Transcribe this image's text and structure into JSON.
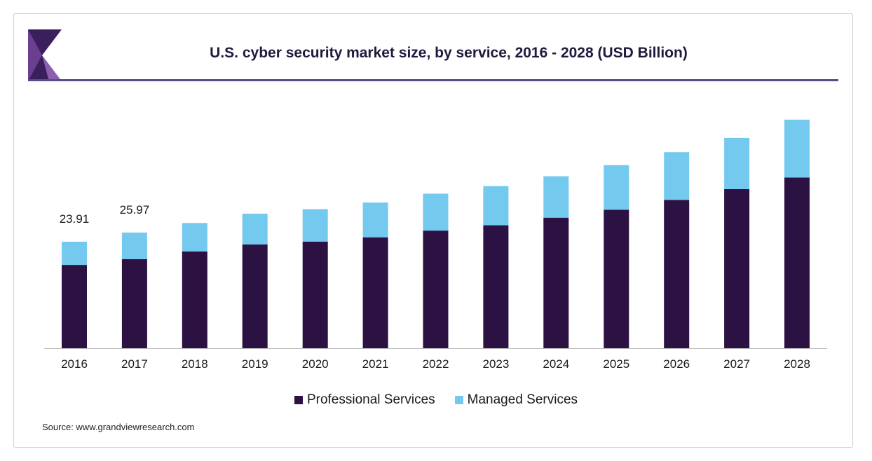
{
  "chart_data": {
    "type": "bar",
    "stacked": true,
    "title": "U.S. cyber security market size, by service, 2016 - 2028 (USD Billion)",
    "categories": [
      "2016",
      "2017",
      "2018",
      "2019",
      "2020",
      "2021",
      "2022",
      "2023",
      "2024",
      "2025",
      "2026",
      "2027",
      "2028"
    ],
    "series": [
      {
        "name": "Professional Services",
        "color": "#2b1242",
        "values": [
          18.7,
          20.0,
          21.7,
          23.3,
          23.9,
          24.9,
          26.4,
          27.6,
          29.3,
          31.1,
          33.3,
          35.7,
          38.3
        ]
      },
      {
        "name": "Managed Services",
        "color": "#74c9ef",
        "values": [
          5.21,
          5.97,
          6.4,
          6.9,
          7.3,
          7.8,
          8.3,
          8.8,
          9.3,
          10.0,
          10.7,
          11.5,
          13.0
        ]
      }
    ],
    "data_labels": [
      {
        "category": "2016",
        "text": "23.91"
      },
      {
        "category": "2017",
        "text": "25.97"
      }
    ],
    "xlabel": "",
    "ylabel": "",
    "ylim": [
      0,
      53
    ],
    "grid": false,
    "legend_position": "bottom"
  },
  "source": "Source: www.grandviewresearch.com",
  "colors": {
    "brand_dark": "#2b1242",
    "brand_light": "#74c9ef",
    "accent": "#5a4a8a"
  }
}
